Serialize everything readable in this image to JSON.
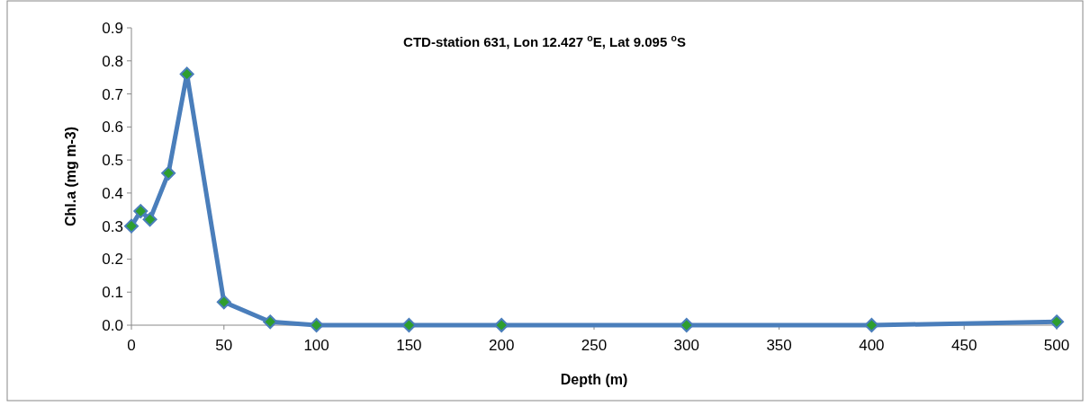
{
  "chart_data": {
    "type": "line",
    "title": "CTD-station 631, Lon 12.427 $^{o}$E, Lat 9.095 $^{o}$S",
    "xlabel": "Depth (m)",
    "ylabel": "Chl.a (mg m-3)",
    "x": [
      0,
      5,
      10,
      20,
      30,
      50,
      75,
      100,
      150,
      200,
      300,
      400,
      500
    ],
    "series": [
      {
        "color": "#4a7ebb",
        "values": [
          0.3,
          0.345,
          0.32,
          0.46,
          0.76,
          0.07,
          0.01,
          0,
          0,
          0,
          0,
          0,
          0.01
        ]
      }
    ],
    "xlim": [
      0,
      500
    ],
    "xticks": [
      0,
      50,
      100,
      150,
      200,
      250,
      300,
      350,
      400,
      450,
      500
    ],
    "ylim": [
      0,
      0.9
    ],
    "yticks": [
      {
        "value": 0,
        "label": "0.0"
      },
      0.1,
      0.2,
      0.3,
      0.4,
      0.5,
      0.6,
      0.7,
      0.8,
      0.9
    ],
    "marker": "diamond",
    "line_style": "solid",
    "grid": false
  }
}
